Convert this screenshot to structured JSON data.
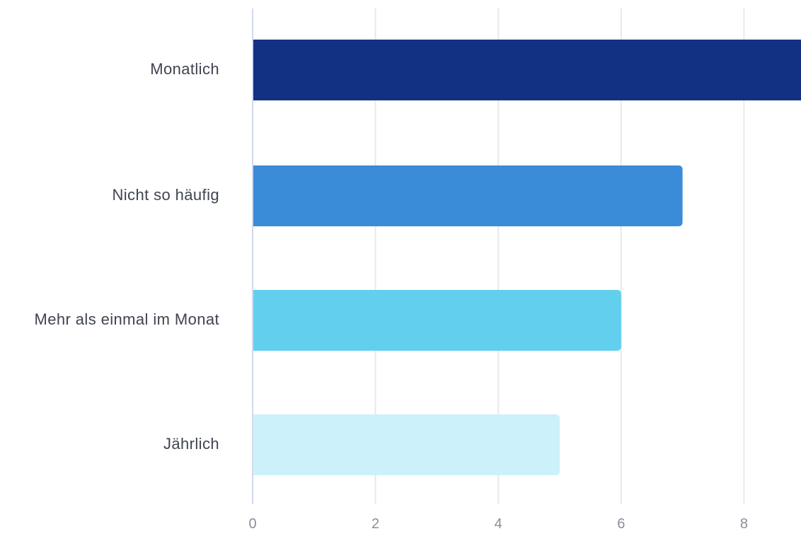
{
  "chart_data": {
    "type": "bar",
    "orientation": "horizontal",
    "categories": [
      "Monatlich",
      "Nicht so häufig",
      "Mehr als einmal im Monat",
      "Jährlich"
    ],
    "values": [
      9,
      7,
      6,
      5
    ],
    "bar_colors": [
      "#133182",
      "#3a8bd8",
      "#62cfef",
      "#cdf1fa"
    ],
    "x_ticks": [
      0,
      2,
      4,
      6,
      8
    ],
    "xlim": [
      0,
      9
    ],
    "title": "",
    "xlabel": "",
    "ylabel": "",
    "grid": true,
    "legend": "none"
  }
}
